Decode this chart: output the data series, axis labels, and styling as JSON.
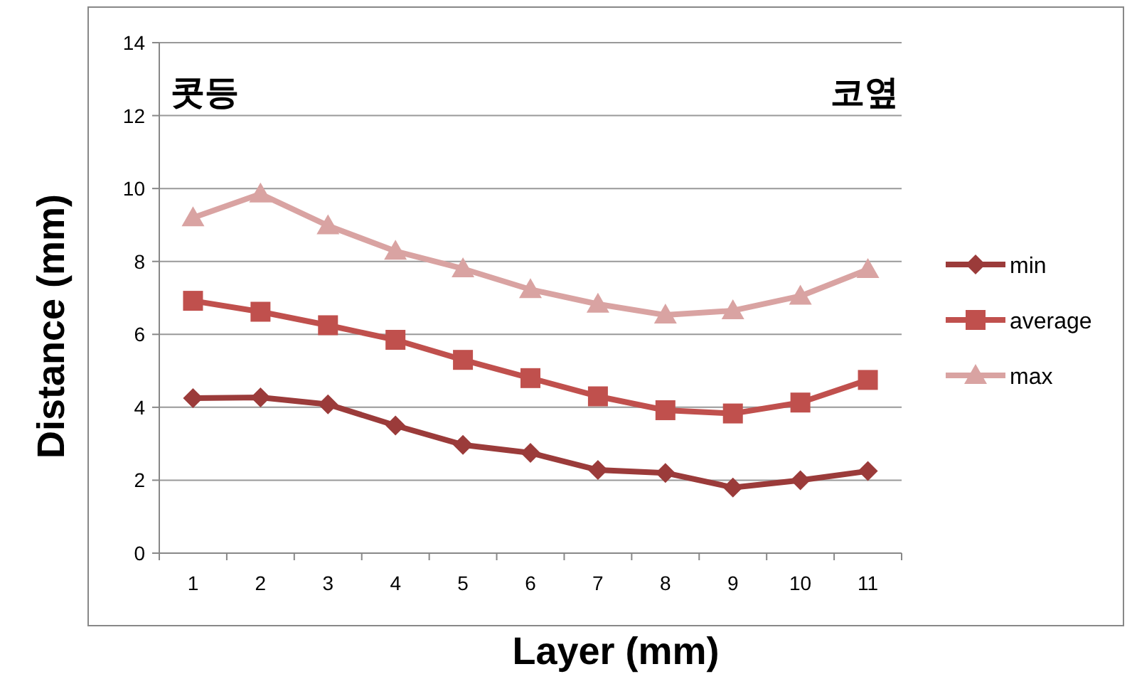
{
  "chart_data": {
    "type": "line",
    "xlabel": "Layer (mm)",
    "ylabel": "Distance (mm)",
    "categories": [
      "1",
      "2",
      "3",
      "4",
      "5",
      "6",
      "7",
      "8",
      "9",
      "10",
      "11"
    ],
    "series": [
      {
        "name": "min",
        "color": "#9b3b3a",
        "marker": "diamond",
        "values": [
          4.25,
          4.27,
          4.08,
          3.5,
          2.97,
          2.75,
          2.28,
          2.2,
          1.8,
          2.0,
          2.25
        ]
      },
      {
        "name": "average",
        "color": "#c0504d",
        "marker": "square",
        "values": [
          6.92,
          6.62,
          6.25,
          5.85,
          5.3,
          4.8,
          4.3,
          3.92,
          3.83,
          4.13,
          4.75
        ]
      },
      {
        "name": "max",
        "color": "#d9a3a2",
        "marker": "triangle",
        "values": [
          9.2,
          9.85,
          8.98,
          8.28,
          7.8,
          7.23,
          6.83,
          6.53,
          6.65,
          7.05,
          7.78
        ]
      }
    ],
    "ylim": [
      0,
      14
    ],
    "yticks": [
      0,
      2,
      4,
      6,
      8,
      10,
      12,
      14
    ],
    "grid": "y",
    "legend": "right",
    "annotations": [
      "콧등",
      "코옆"
    ]
  }
}
